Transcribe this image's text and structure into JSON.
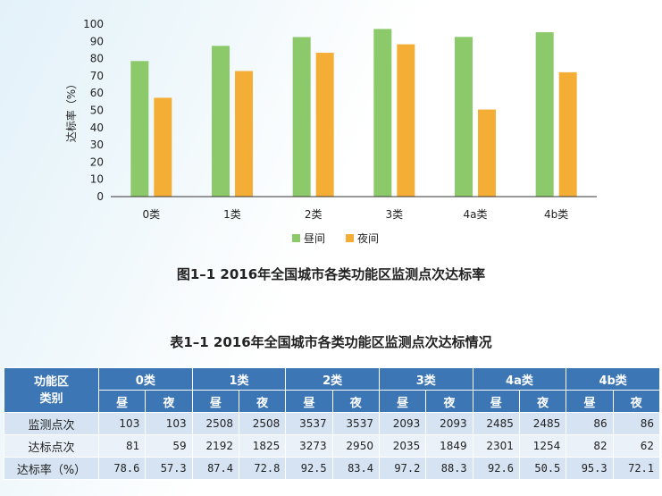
{
  "colors": {
    "day": "#8cc96a",
    "night": "#f4ad35",
    "table_header": "#3d76b4",
    "row_odd": "#d5e3f2",
    "row_even": "#eaf1f9"
  },
  "chart_data": {
    "type": "bar",
    "categories": [
      "0类",
      "1类",
      "2类",
      "3类",
      "4a类",
      "4b类"
    ],
    "series": [
      {
        "name": "昼间",
        "values": [
          78.6,
          87.4,
          92.5,
          97.2,
          92.6,
          95.3
        ]
      },
      {
        "name": "夜间",
        "values": [
          57.3,
          72.8,
          83.4,
          88.3,
          50.5,
          72.1
        ]
      }
    ],
    "ylabel": "达标率（%）",
    "ylim": [
      0,
      100
    ],
    "yticks": [
      0,
      10,
      20,
      30,
      40,
      50,
      60,
      70,
      80,
      90,
      100
    ],
    "legend": "bottom",
    "grid": false
  },
  "figure_caption": "图1–1  2016年全国城市各类功能区监测点次达标率",
  "table_caption": "表1–1  2016年全国城市各类功能区监测点次达标情况",
  "table": {
    "corner_line1": "功能区",
    "corner_line2": "类别",
    "groups": [
      "0类",
      "1类",
      "2类",
      "3类",
      "4a类",
      "4b类"
    ],
    "sub_day": "昼",
    "sub_night": "夜",
    "rows": [
      {
        "label": "监测点次",
        "cells": [
          "103",
          "103",
          "2508",
          "2508",
          "3537",
          "3537",
          "2093",
          "2093",
          "2485",
          "2485",
          "86",
          "86"
        ]
      },
      {
        "label": "达标点次",
        "cells": [
          "81",
          "59",
          "2192",
          "1825",
          "3273",
          "2950",
          "2035",
          "1849",
          "2301",
          "1254",
          "82",
          "62"
        ]
      },
      {
        "label": "达标率（%）",
        "cells": [
          "78.6",
          "57.3",
          "87.4",
          "72.8",
          "92.5",
          "83.4",
          "97.2",
          "88.3",
          "92.6",
          "50.5",
          "95.3",
          "72.1"
        ]
      }
    ]
  }
}
